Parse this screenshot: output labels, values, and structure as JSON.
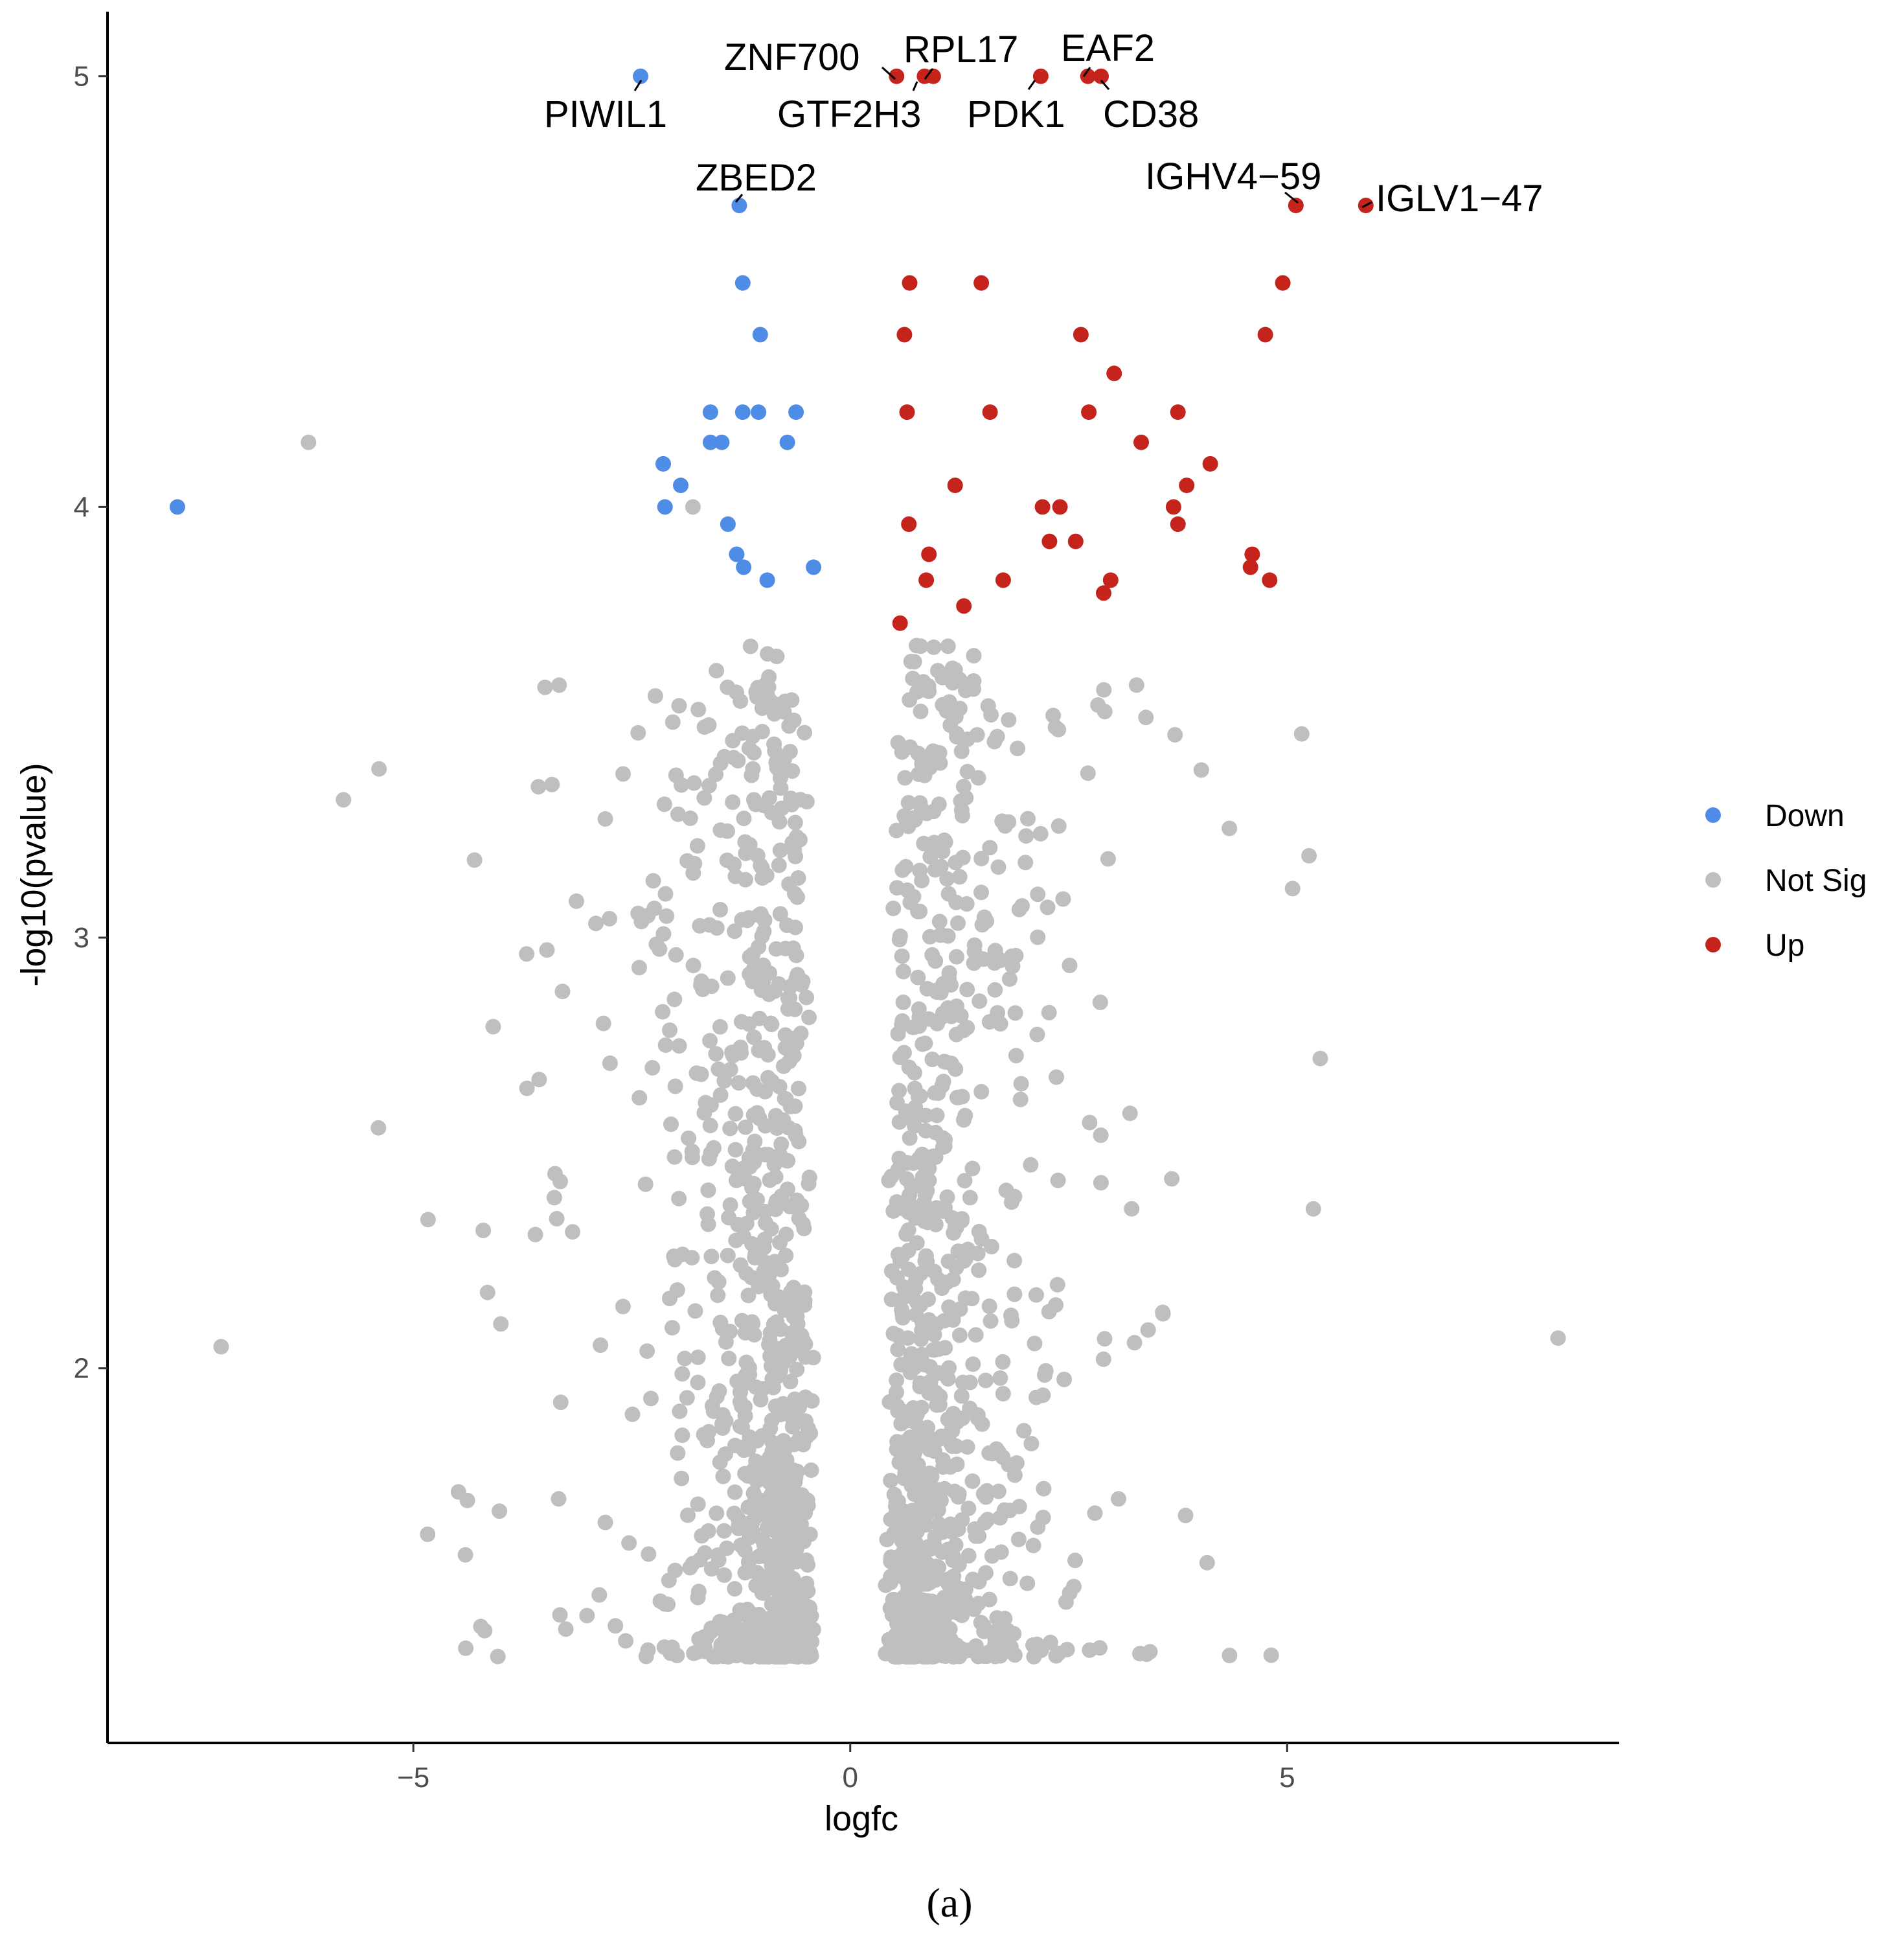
{
  "panel_label": "(a)",
  "chart_data": {
    "type": "scatter",
    "title": "",
    "xlabel": "logfc",
    "ylabel": "-log10(pvalue)",
    "xlim": [
      -8.5,
      8.8
    ],
    "ylim": [
      1.13,
      5.15
    ],
    "xticks": [
      -5,
      0,
      5
    ],
    "xtick_labels": [
      "−5",
      "0",
      "5"
    ],
    "yticks": [
      2,
      3,
      4,
      5
    ],
    "ytick_labels": [
      "2",
      "3",
      "4",
      "5"
    ],
    "grid": false,
    "legend_position": "right",
    "colors": {
      "Down": "#4f8ce6",
      "Not Sig": "#bfbfbf",
      "Up": "#c4241c"
    },
    "legend": [
      "Down",
      "Not Sig",
      "Up"
    ],
    "series": [
      {
        "name": "Down",
        "color": "#4f8ce6",
        "points": [
          [
            -2.4,
            5.0
          ],
          [
            -1.27,
            4.7
          ],
          [
            -1.23,
            4.52
          ],
          [
            -1.03,
            4.4
          ],
          [
            -1.6,
            4.22
          ],
          [
            -1.23,
            4.22
          ],
          [
            -1.05,
            4.22
          ],
          [
            -0.62,
            4.22
          ],
          [
            -1.6,
            4.15
          ],
          [
            -1.47,
            4.15
          ],
          [
            -0.72,
            4.15
          ],
          [
            -2.14,
            4.1
          ],
          [
            -1.94,
            4.05
          ],
          [
            -2.12,
            4.0
          ],
          [
            -7.7,
            4.0
          ],
          [
            -1.4,
            3.96
          ],
          [
            -1.3,
            3.89
          ],
          [
            -1.22,
            3.86
          ],
          [
            -0.42,
            3.86
          ],
          [
            -0.95,
            3.83
          ]
        ]
      },
      {
        "name": "Up",
        "color": "#c4241c",
        "points": [
          [
            0.53,
            5.0
          ],
          [
            0.85,
            5.0
          ],
          [
            0.95,
            5.0
          ],
          [
            2.18,
            5.0
          ],
          [
            2.72,
            5.0
          ],
          [
            2.87,
            5.0
          ],
          [
            5.1,
            4.7
          ],
          [
            5.9,
            4.7
          ],
          [
            0.68,
            4.52
          ],
          [
            1.5,
            4.52
          ],
          [
            4.95,
            4.52
          ],
          [
            0.62,
            4.4
          ],
          [
            2.64,
            4.4
          ],
          [
            4.75,
            4.4
          ],
          [
            3.02,
            4.31
          ],
          [
            0.65,
            4.22
          ],
          [
            1.6,
            4.22
          ],
          [
            2.73,
            4.22
          ],
          [
            3.75,
            4.22
          ],
          [
            3.33,
            4.15
          ],
          [
            4.12,
            4.1
          ],
          [
            1.2,
            4.05
          ],
          [
            3.85,
            4.05
          ],
          [
            2.2,
            4.0
          ],
          [
            2.4,
            4.0
          ],
          [
            3.7,
            4.0
          ],
          [
            0.67,
            3.96
          ],
          [
            3.75,
            3.96
          ],
          [
            2.28,
            3.92
          ],
          [
            2.58,
            3.92
          ],
          [
            0.9,
            3.89
          ],
          [
            4.6,
            3.89
          ],
          [
            4.58,
            3.86
          ],
          [
            0.87,
            3.83
          ],
          [
            1.75,
            3.83
          ],
          [
            2.98,
            3.83
          ],
          [
            4.8,
            3.83
          ],
          [
            2.9,
            3.8
          ],
          [
            1.3,
            3.77
          ],
          [
            0.57,
            3.73
          ]
        ]
      }
    ],
    "not_sig_summary": "dense V-shaped cloud of gray points, logfc roughly -7.2 to 8.1, -log10(pvalue) from about 1.3 to 3.7",
    "annotations": [
      {
        "text": "PIWIL1",
        "x": -2.4,
        "y": 5.0
      },
      {
        "text": "ZNF700",
        "x": 0.53,
        "y": 5.0
      },
      {
        "text": "RPL17",
        "x": 0.95,
        "y": 5.0
      },
      {
        "text": "GTF2H3",
        "x": 0.85,
        "y": 5.0
      },
      {
        "text": "PDK1",
        "x": 2.18,
        "y": 5.0
      },
      {
        "text": "EAF2",
        "x": 2.72,
        "y": 5.0
      },
      {
        "text": "CD38",
        "x": 2.87,
        "y": 5.0
      },
      {
        "text": "ZBED2",
        "x": -1.27,
        "y": 4.7
      },
      {
        "text": "IGHV4−59",
        "x": 5.1,
        "y": 4.7
      },
      {
        "text": "IGLV1−47",
        "x": 5.9,
        "y": 4.7
      }
    ]
  }
}
